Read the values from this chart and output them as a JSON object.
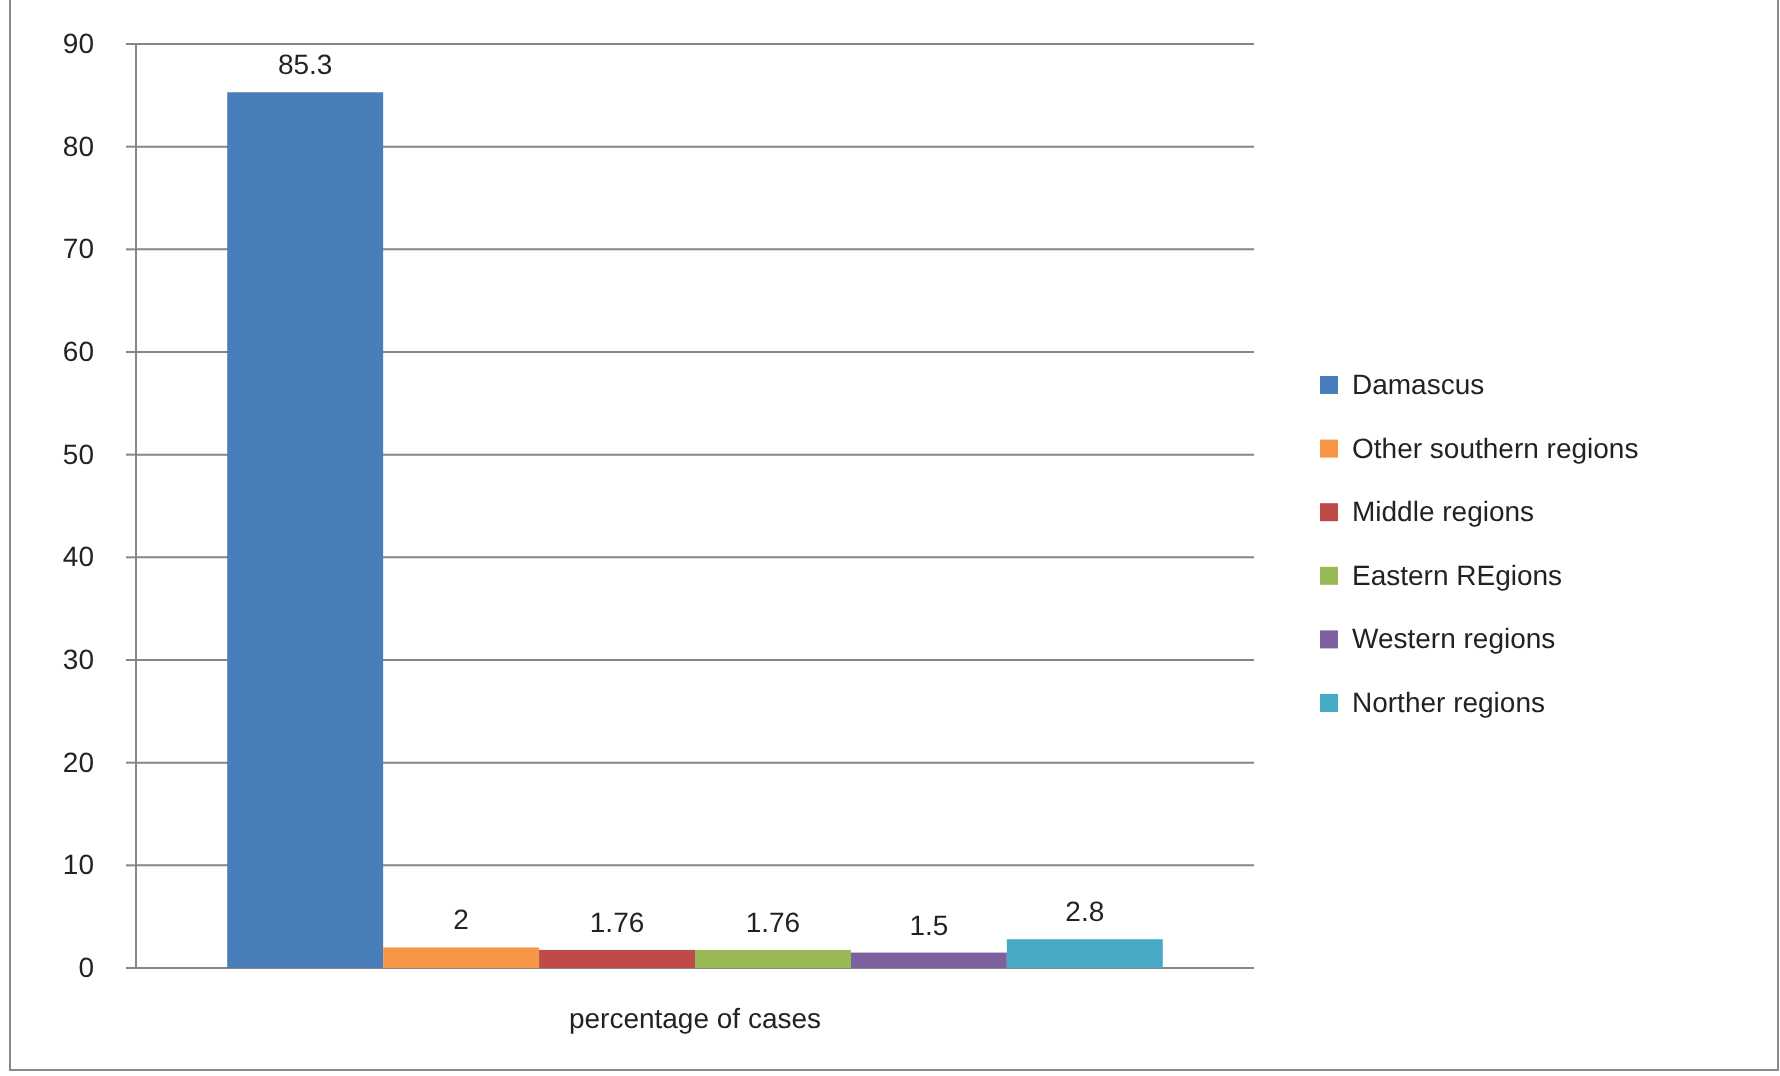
{
  "chart_data": {
    "type": "bar",
    "categories": [
      "percentage of cases"
    ],
    "series": [
      {
        "name": "Damascus",
        "color": "#4a7ebb",
        "values": [
          85.3
        ]
      },
      {
        "name": "Other southern regions",
        "color": "#f79646",
        "values": [
          2
        ]
      },
      {
        "name": "Middle regions",
        "color": "#be4b48",
        "values": [
          1.76
        ]
      },
      {
        "name": "Eastern REgions",
        "color": "#98b954",
        "values": [
          1.76
        ]
      },
      {
        "name": "Western regions",
        "color": "#7d60a0",
        "values": [
          1.5
        ]
      },
      {
        "name": "Norther regions",
        "color": "#46aac5",
        "values": [
          2.8
        ]
      }
    ],
    "ylim": [
      0,
      90
    ],
    "yticks": [
      0,
      10,
      20,
      30,
      40,
      50,
      60,
      70,
      80,
      90
    ],
    "grid": "y",
    "legend": "right",
    "data_labels": true
  }
}
